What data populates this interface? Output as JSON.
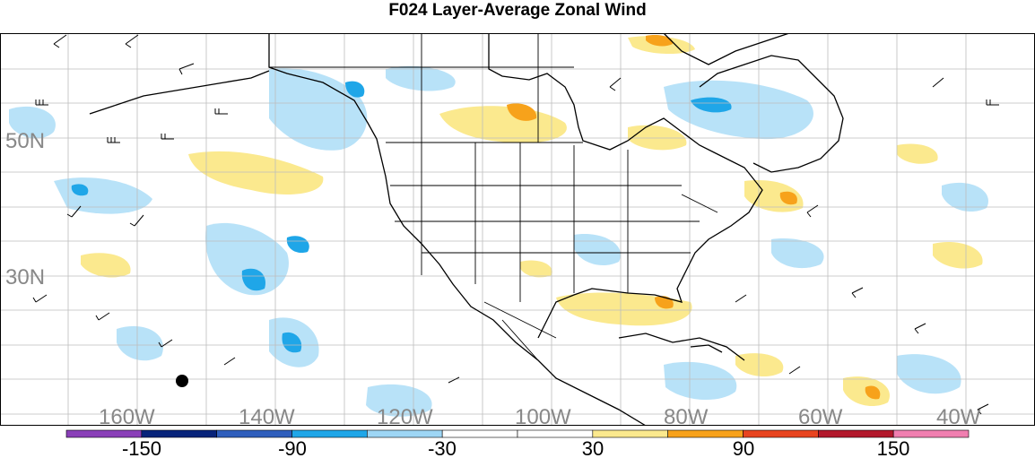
{
  "title": "F024 Layer-Average Zonal Wind",
  "latitude_labels": [
    "50N",
    "30N"
  ],
  "longitude_labels": [
    "160W",
    "140W",
    "120W",
    "100W",
    "80W",
    "60W",
    "40W"
  ],
  "colorbar": {
    "labels": [
      "-150",
      "-90",
      "-30",
      "30",
      "90",
      "150"
    ],
    "colors": [
      "#8a3fb8",
      "#07237a",
      "#2f5ebc",
      "#1fa6e8",
      "#9ed6f5",
      "#ffffff",
      "#ffffff",
      "#fbe98e",
      "#f7a21b",
      "#e8441f",
      "#b2182b",
      "#f07fb0"
    ]
  },
  "colors": {
    "positive_light": "#fbe98e",
    "positive_medium": "#f7a21b",
    "negative_light": "#b8e2f8",
    "negative_medium": "#1fa6e8",
    "coastline": "#000000",
    "grid": "#bdbdbd"
  },
  "marker": "filled-circle-marker"
}
